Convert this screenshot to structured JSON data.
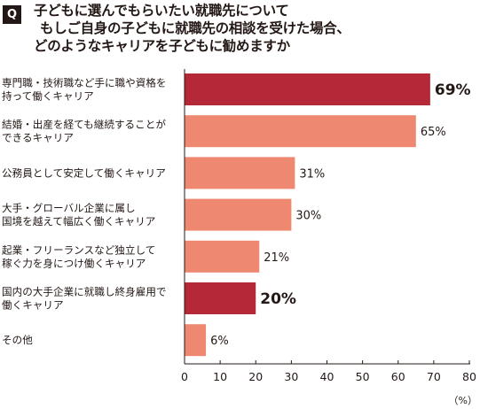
{
  "header": {
    "badge": "Q",
    "title_lines": [
      "子どもに選んでもらいたい就職先について",
      "もしご自身の子どもに就職先の相談を受けた場合、",
      "どのようなキャリアを子どもに勧めますか"
    ]
  },
  "colors": {
    "highlight": "#b52838",
    "normal": "#ef8870",
    "highlight_label": "#b52838",
    "axis": "#231815"
  },
  "chart_data": {
    "type": "bar",
    "orientation": "horizontal",
    "categories": [
      [
        "専門職・技術職など手に職や資格を",
        "持って働くキャリア"
      ],
      [
        "結婚・出産を経ても継続することが",
        "できるキャリア"
      ],
      [
        "公務員として安定して働くキャリア"
      ],
      [
        "大手・グローバル企業に属し",
        "国境を越えて幅広く働くキャリア"
      ],
      [
        "起業・フリーランスなど独立して",
        "稼ぐ力を身につけ働くキャリア"
      ],
      [
        "国内の大手企業に就職し終身雇用で",
        "働くキャリア"
      ],
      [
        "その他"
      ]
    ],
    "values": [
      69,
      65,
      31,
      30,
      21,
      20,
      6
    ],
    "value_labels": [
      "69%",
      "65%",
      "31%",
      "30%",
      "21%",
      "20%",
      "6%"
    ],
    "highlighted": [
      true,
      false,
      false,
      false,
      false,
      true,
      false
    ],
    "xlim": [
      0,
      80
    ],
    "xticks": [
      0,
      10,
      20,
      30,
      40,
      50,
      60,
      70,
      80
    ],
    "xlabel": "（%）",
    "grid": false,
    "title": "子どもに選んでもらいたい就職先について"
  }
}
